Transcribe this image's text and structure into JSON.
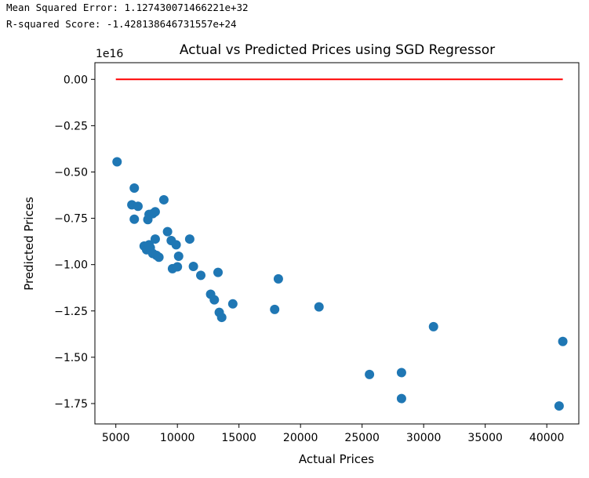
{
  "output": {
    "mse_line": "Mean Squared Error: 1.127430071466221e+32",
    "r2_line": "R-squared Score: -1.428138646731557e+24"
  },
  "chart_data": {
    "type": "scatter",
    "title": "Actual vs Predicted Prices using SGD Regressor",
    "xlabel": "Actual Prices",
    "ylabel": "Predicted Prices",
    "y_offset_text": "1e16",
    "xlim": [
      3300,
      42600
    ],
    "ylim": [
      -1.86,
      0.09
    ],
    "xticks": [
      5000,
      10000,
      15000,
      20000,
      25000,
      30000,
      35000,
      40000
    ],
    "xtick_labels": [
      "5000",
      "10000",
      "15000",
      "20000",
      "25000",
      "30000",
      "35000",
      "40000"
    ],
    "yticks": [
      0.0,
      -0.25,
      -0.5,
      -0.75,
      -1.0,
      -1.25,
      -1.5,
      -1.75
    ],
    "ytick_labels": [
      "0.00",
      "−0.25",
      "−0.50",
      "−0.75",
      "−1.00",
      "−1.25",
      "−1.50",
      "−1.75"
    ],
    "grid": false,
    "colors": {
      "points": "#1f77b4",
      "line": "#ff0000",
      "axes": "#000000"
    },
    "line": {
      "x": [
        5000,
        41300
      ],
      "y": [
        0.0,
        0.0
      ]
    },
    "points": {
      "x": [
        5100,
        6300,
        6500,
        6500,
        6800,
        7300,
        7500,
        7600,
        7700,
        7700,
        7800,
        8000,
        8000,
        8200,
        8200,
        8300,
        8500,
        8900,
        9200,
        9500,
        9600,
        9900,
        10000,
        10100,
        11000,
        11300,
        11900,
        12700,
        13000,
        13300,
        13400,
        13600,
        14500,
        17900,
        18200,
        21500,
        25600,
        28200,
        28200,
        30800,
        41000,
        41300
      ],
      "y": [
        -0.445,
        -0.677,
        -0.587,
        -0.755,
        -0.685,
        -0.9,
        -0.92,
        -0.757,
        -0.729,
        -0.893,
        -0.909,
        -0.725,
        -0.94,
        -0.715,
        -0.862,
        -0.95,
        -0.96,
        -0.65,
        -0.822,
        -0.87,
        -1.022,
        -0.893,
        -1.012,
        -0.955,
        -0.862,
        -1.01,
        -1.058,
        -1.16,
        -1.19,
        -1.042,
        -1.258,
        -1.285,
        -1.212,
        -1.242,
        -1.077,
        -1.228,
        -1.593,
        -1.583,
        -1.723,
        -1.335,
        -1.763,
        -1.415
      ]
    }
  }
}
